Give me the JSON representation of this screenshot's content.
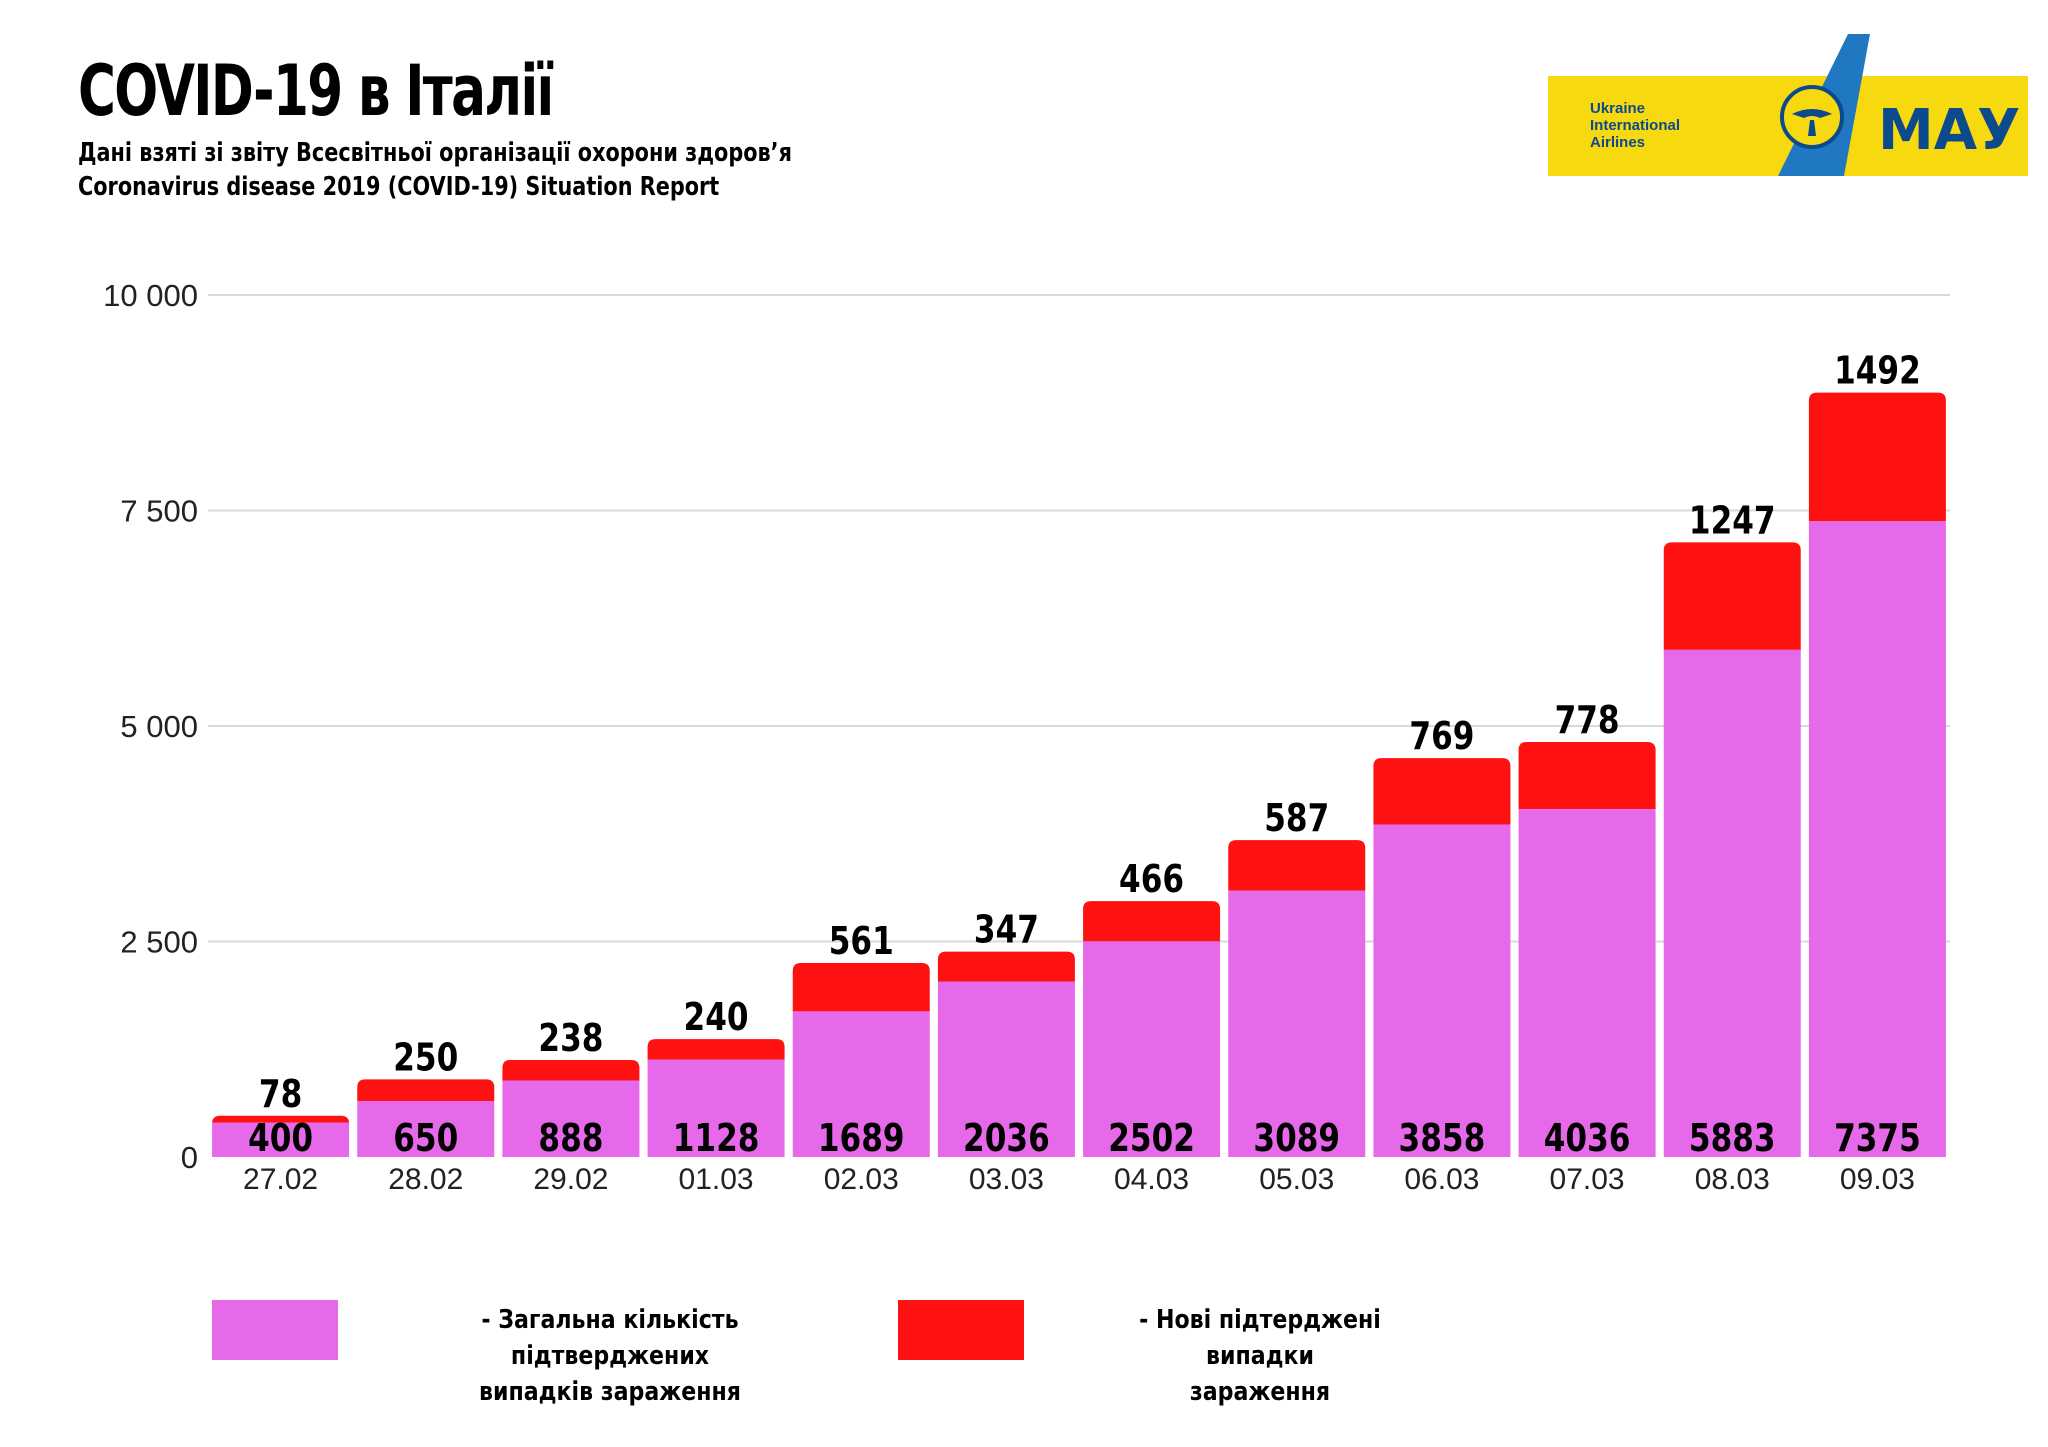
{
  "header": {
    "title": "COVID-19 в Італії",
    "subtitle_line1": "Дані взяті зі звіту Всесвітньої організації охорони здоров’я",
    "subtitle_line2": "Coronavirus disease 2019 (COVID-19) Situation Report"
  },
  "logo": {
    "line1": "Ukraine",
    "line2": "International",
    "line3": "Airlines",
    "wordmark": "МАУ",
    "icon": "uia-bird-emblem-icon",
    "colors": {
      "yellow": "#f6d90f",
      "blue": "#1f78c1",
      "navy": "#0b4a8c"
    }
  },
  "chart_data": {
    "type": "bar",
    "stacked": true,
    "categories": [
      "27.02",
      "28.02",
      "29.02",
      "01.03",
      "02.03",
      "03.03",
      "04.03",
      "05.03",
      "06.03",
      "07.03",
      "08.03",
      "09.03"
    ],
    "series": [
      {
        "name": "- Загальна кількість підтверджених випадків зараження",
        "color": "#e569e8",
        "values": [
          400,
          650,
          888,
          1128,
          1689,
          2036,
          2502,
          3089,
          3858,
          4036,
          5883,
          7375
        ]
      },
      {
        "name": "- Нові підтерджені випадки зараження",
        "color": "#fe1111",
        "values": [
          78,
          250,
          238,
          240,
          561,
          347,
          466,
          587,
          769,
          778,
          1247,
          1492
        ]
      }
    ],
    "ylim": [
      0,
      10000
    ],
    "yticks": [
      0,
      2500,
      5000,
      7500,
      10000
    ],
    "ytick_labels": [
      "0",
      "2 500",
      "5 000",
      "7 500",
      "10 000"
    ],
    "grid": true,
    "legend": "bottom"
  },
  "legend": {
    "total_line1": "- Загальна кількість підтверджених",
    "total_line2": "випадків зараження",
    "new_line1": "- Нові підтерджені випадки",
    "new_line2": "зараження"
  }
}
